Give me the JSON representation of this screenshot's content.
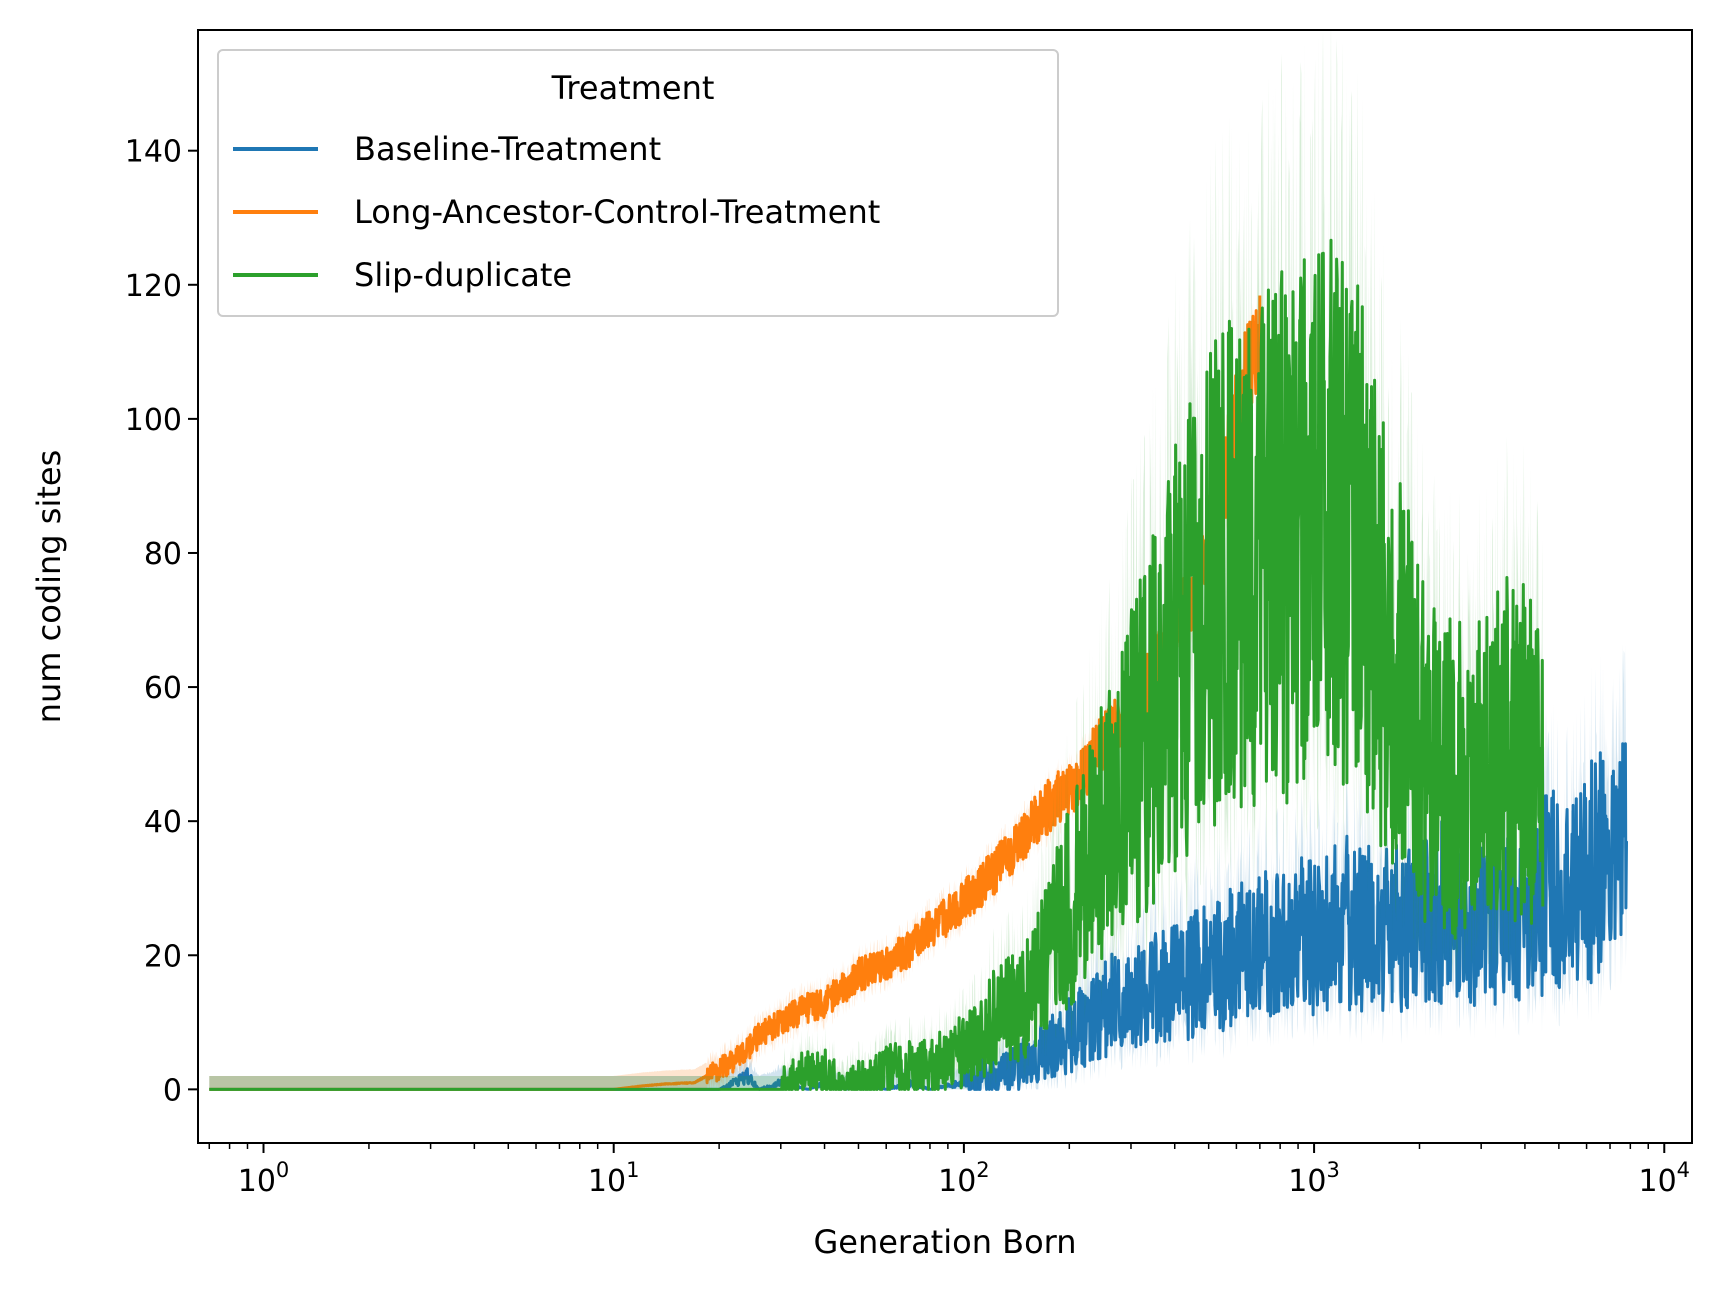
{
  "chart_data": {
    "type": "line",
    "title": "",
    "xlabel": "Generation Born",
    "ylabel": "num coding sites",
    "xscale": "log",
    "xlim": [
      0.65,
      12000
    ],
    "ylim": [
      -8,
      158
    ],
    "grid": false,
    "legend": {
      "title": "Treatment",
      "placement": "upper-left"
    },
    "x_ticks": [
      {
        "value": 1,
        "base": "10",
        "exp": "0"
      },
      {
        "value": 10,
        "base": "10",
        "exp": "1"
      },
      {
        "value": 100,
        "base": "10",
        "exp": "2"
      },
      {
        "value": 1000,
        "base": "10",
        "exp": "3"
      },
      {
        "value": 10000,
        "base": "10",
        "exp": "4"
      }
    ],
    "y_ticks": [
      0,
      20,
      40,
      60,
      80,
      100,
      120,
      140
    ],
    "series": [
      {
        "name": "Baseline-Treatment",
        "color": "#1f77b4",
        "x": [
          0.7,
          1,
          5,
          10,
          20,
          24,
          26,
          30,
          36,
          40,
          46,
          50,
          60,
          70,
          80,
          100,
          120,
          140,
          160,
          200,
          250,
          300,
          400,
          500,
          600,
          800,
          1000,
          1200,
          1500,
          2000,
          2500,
          3000,
          4000,
          5000,
          6000,
          7000,
          7800
        ],
        "y": [
          0,
          0,
          0,
          0,
          0,
          2,
          0,
          1,
          0,
          1,
          0,
          1,
          0,
          1,
          0,
          1,
          2,
          3,
          5,
          8,
          12,
          14,
          16,
          18,
          20,
          22,
          23,
          25,
          24,
          25,
          27,
          26,
          28,
          30,
          32,
          35,
          39
        ]
      },
      {
        "name": "Long-Ancestor-Control-Treatment",
        "color": "#ff7f0e",
        "x": [
          0.7,
          1,
          5,
          10,
          12,
          14,
          17,
          20,
          23,
          26,
          30,
          35,
          40,
          45,
          50,
          60,
          70,
          80,
          90,
          100,
          120,
          140,
          160,
          180,
          200,
          220,
          250,
          300,
          350,
          400,
          450,
          500,
          550,
          600,
          650,
          700
        ],
        "y": [
          0,
          0,
          0,
          0,
          0.5,
          0.8,
          1,
          3,
          5,
          8,
          10,
          12,
          13,
          15,
          17,
          19,
          21,
          24,
          26,
          28,
          32,
          36,
          40,
          43,
          45,
          47,
          52,
          57,
          62,
          68,
          74,
          82,
          90,
          100,
          108,
          114
        ]
      },
      {
        "name": "Slip-duplicate",
        "color": "#2ca02c",
        "x": [
          0.7,
          1,
          5,
          10,
          20,
          30,
          38,
          45,
          55,
          65,
          80,
          100,
          120,
          150,
          180,
          220,
          260,
          300,
          350,
          400,
          450,
          500,
          600,
          700,
          800,
          900,
          1000,
          1100,
          1200,
          1300,
          1500,
          1800,
          2000,
          2300,
          2600,
          3000,
          3500,
          4000,
          4500
        ],
        "y": [
          0,
          0,
          0,
          0,
          0,
          0,
          3,
          0,
          2,
          3,
          3,
          6,
          10,
          14,
          22,
          32,
          40,
          48,
          56,
          64,
          70,
          74,
          78,
          80,
          82,
          84,
          85,
          86,
          87,
          83,
          72,
          60,
          52,
          47,
          46,
          47,
          52,
          50,
          48
        ]
      }
    ]
  }
}
